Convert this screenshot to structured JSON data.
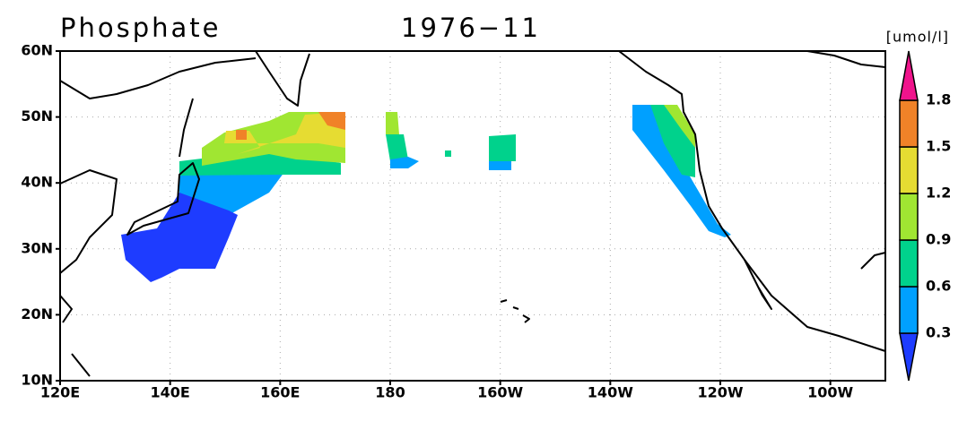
{
  "header": {
    "title": "Phosphate",
    "period": "1976−11",
    "unit": "[umol/l]"
  },
  "map": {
    "lon_range": [
      120,
      270
    ],
    "lat_range": [
      10,
      60
    ],
    "lat_ticks": [
      {
        "value": 10,
        "label": "10N"
      },
      {
        "value": 20,
        "label": "20N"
      },
      {
        "value": 30,
        "label": "30N"
      },
      {
        "value": 40,
        "label": "40N"
      },
      {
        "value": 50,
        "label": "50N"
      },
      {
        "value": 60,
        "label": "60N"
      }
    ],
    "lon_ticks": [
      {
        "value": 120,
        "label": "120E"
      },
      {
        "value": 140,
        "label": "140E"
      },
      {
        "value": 160,
        "label": "160E"
      },
      {
        "value": 180,
        "label": "180"
      },
      {
        "value": 200,
        "label": "160W"
      },
      {
        "value": 220,
        "label": "140W"
      },
      {
        "value": 240,
        "label": "120W"
      },
      {
        "value": 260,
        "label": "100W"
      }
    ],
    "grid": true
  },
  "colorbar": {
    "levels": [
      0.3,
      0.6,
      0.9,
      1.2,
      1.5,
      1.8
    ],
    "colors": [
      "#1e3cff",
      "#00a0ff",
      "#00d28c",
      "#a0e632",
      "#e6dc32",
      "#f08228",
      "#f0148c"
    ]
  }
}
